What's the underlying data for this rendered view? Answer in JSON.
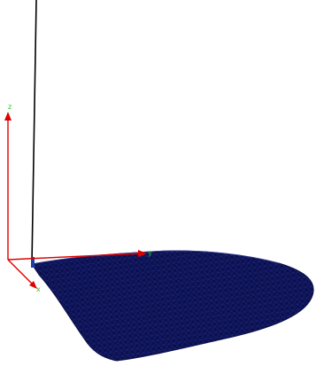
{
  "viewer": {
    "axes": {
      "x_label": "x",
      "y_label": "y",
      "z_label": "z"
    }
  },
  "colors": {
    "background": "#ffffff",
    "axis_line": "#e00000",
    "axis_label": "#22cc22",
    "mesh_fill": "#0b0f4a",
    "mesh_line": "#1a237a",
    "pole": "#000000"
  },
  "icons": {
    "triad": "xyz-axis-triad-icon"
  }
}
